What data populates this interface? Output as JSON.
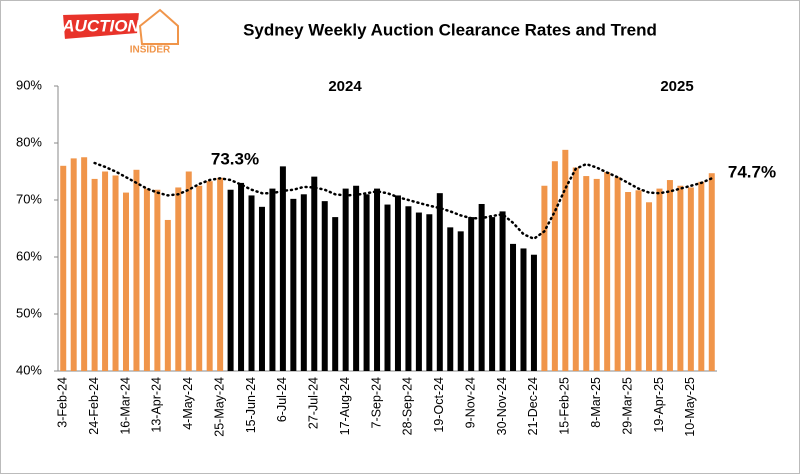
{
  "logo": {
    "top": "AUCTION",
    "bottom": "INSIDER"
  },
  "chart_data": {
    "type": "bar",
    "title": "Sydney Weekly Auction  Clearance Rates and Trend",
    "categories": [
      "3-Feb-24",
      null,
      null,
      "24-Feb-24",
      null,
      null,
      "16-Mar-24",
      null,
      null,
      "13-Apr-24",
      null,
      null,
      "4-May-24",
      null,
      null,
      "25-May-24",
      null,
      null,
      "15-Jun-24",
      null,
      null,
      "6-Jul-24",
      null,
      null,
      "27-Jul-24",
      null,
      null,
      "17-Aug-24",
      null,
      null,
      "7-Sep-24",
      null,
      null,
      "28-Sep-24",
      null,
      null,
      "19-Oct-24",
      null,
      null,
      "9-Nov-24",
      null,
      null,
      "30-Nov-24",
      null,
      null,
      "21-Dec-24",
      null,
      null,
      "15-Feb-25",
      null,
      null,
      "8-Mar-25",
      null,
      null,
      "29-Mar-25",
      null,
      null,
      "19-Apr-25",
      null,
      null,
      "10-May-25",
      null,
      null
    ],
    "values": [
      76,
      77.3,
      77.5,
      73.7,
      75,
      74.3,
      71.3,
      75.3,
      72,
      71.8,
      66.5,
      72.2,
      75,
      72.5,
      73.3,
      73.9,
      71.8,
      73,
      70.8,
      68.8,
      72,
      75.9,
      70.2,
      71,
      74.1,
      69.8,
      67,
      72,
      72.5,
      71,
      72,
      69.2,
      70.8,
      68.9,
      67.8,
      67.5,
      71.2,
      65.2,
      64.5,
      67,
      69.3,
      67,
      68,
      62.3,
      61.5,
      60.4,
      72.5,
      76.8,
      78.8,
      75.7,
      74.2,
      73.7,
      74.9,
      74,
      71.4,
      71.7,
      69.6,
      72,
      73.5,
      72.5,
      72.2,
      73.2,
      74.7
    ],
    "colors": [
      "#f0954a",
      "#f0954a",
      "#f0954a",
      "#f0954a",
      "#f0954a",
      "#f0954a",
      "#f0954a",
      "#f0954a",
      "#f0954a",
      "#f0954a",
      "#f0954a",
      "#f0954a",
      "#f0954a",
      "#f0954a",
      "#f0954a",
      "#f0954a",
      "#000000",
      "#000000",
      "#000000",
      "#000000",
      "#000000",
      "#000000",
      "#000000",
      "#000000",
      "#000000",
      "#000000",
      "#000000",
      "#000000",
      "#000000",
      "#000000",
      "#000000",
      "#000000",
      "#000000",
      "#000000",
      "#000000",
      "#000000",
      "#000000",
      "#000000",
      "#000000",
      "#000000",
      "#000000",
      "#000000",
      "#000000",
      "#000000",
      "#000000",
      "#000000",
      "#f0954a",
      "#f0954a",
      "#f0954a",
      "#f0954a",
      "#f0954a",
      "#f0954a",
      "#f0954a",
      "#f0954a",
      "#f0954a",
      "#f0954a",
      "#f0954a",
      "#f0954a",
      "#f0954a",
      "#f0954a",
      "#f0954a",
      "#f0954a",
      "#f0954a"
    ],
    "trend": [
      null,
      null,
      null,
      76.5,
      75.8,
      75,
      74,
      73,
      72,
      71.3,
      70.8,
      71,
      71.8,
      72.8,
      73.5,
      73.8,
      73.5,
      72.7,
      71.8,
      71.2,
      71.2,
      71.6,
      71.8,
      72.3,
      72.2,
      71.8,
      71,
      70.8,
      70.9,
      71.2,
      71.5,
      71.2,
      70.5,
      70,
      69.5,
      69,
      68.6,
      68,
      67.3,
      66.8,
      66.8,
      67.2,
      67.5,
      66,
      64,
      63.2,
      64.5,
      68,
      72,
      75.5,
      76.3,
      75.7,
      74.8,
      74,
      73,
      72,
      71.3,
      71.2,
      71.5,
      72,
      72.5,
      73,
      73.8
    ],
    "annotations": [
      "73.3%",
      "74.7%",
      "2024",
      "2025"
    ],
    "ylim": [
      40,
      90
    ],
    "yticks": [
      {
        "value": 40,
        "label": "40%"
      },
      {
        "value": 50,
        "label": "50%"
      },
      {
        "value": 60,
        "label": "60%"
      },
      {
        "value": 70,
        "label": "70%"
      },
      {
        "value": 80,
        "label": "80%"
      },
      {
        "value": 90,
        "label": "90%"
      }
    ]
  }
}
